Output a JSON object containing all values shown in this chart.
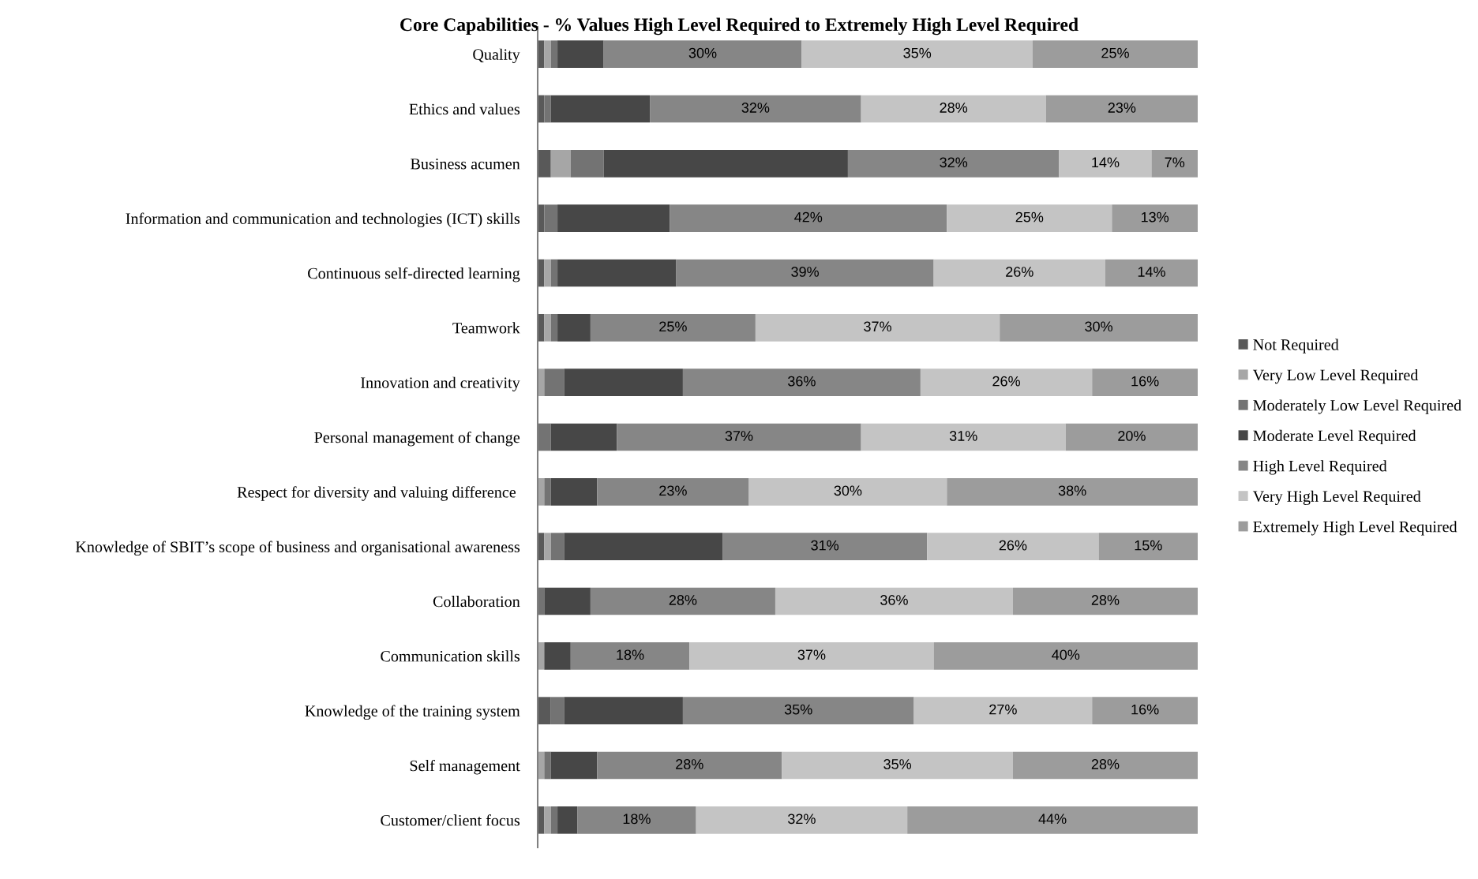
{
  "chart_data": {
    "type": "bar",
    "orientation": "horizontal",
    "stacked": true,
    "title": "Core Capabilities - % Values High Level Required to Extremely High Level Required",
    "legend": "right",
    "grid": false,
    "tick_labels": "y",
    "categories": [
      "Quality",
      "Ethics and values",
      "Business acumen",
      "Information and communication and technologies (ICT) skills",
      "Continuous self-directed learning",
      "Teamwork",
      "Innovation and creativity",
      "Personal management of change",
      "Respect for diversity and valuing difference ",
      "Knowledge of SBIT’s scope of business and organisational awareness",
      "Collaboration",
      "Communication skills",
      "Knowledge of the training system",
      "Self management",
      "Customer/client focus"
    ],
    "series": [
      {
        "name": "Not Required",
        "color": "#595959",
        "values": [
          1,
          1,
          2,
          1,
          1,
          1,
          0,
          0,
          0,
          1,
          0,
          0,
          2,
          0,
          1
        ]
      },
      {
        "name": "Very Low Level Required",
        "color": "#a6a6a6",
        "values": [
          1,
          0,
          3,
          0,
          1,
          1,
          1,
          0,
          1,
          1,
          0,
          1,
          0,
          1,
          1
        ]
      },
      {
        "name": "Moderately Low Level Required",
        "color": "#737373",
        "values": [
          1,
          1,
          5,
          2,
          1,
          1,
          3,
          2,
          1,
          2,
          1,
          0,
          2,
          1,
          1
        ]
      },
      {
        "name": "Moderate Level Required",
        "color": "#474747",
        "values": [
          7,
          15,
          37,
          17,
          18,
          5,
          18,
          10,
          7,
          24,
          7,
          4,
          18,
          7,
          3
        ]
      },
      {
        "name": "High Level Required",
        "color": "#868686",
        "values": [
          30,
          32,
          32,
          42,
          39,
          25,
          36,
          37,
          23,
          31,
          28,
          18,
          35,
          28,
          18
        ],
        "value_labels": [
          "30%",
          "32%",
          "32%",
          "42%",
          "39%",
          "25%",
          "36%",
          "37%",
          "23%",
          "31%",
          "28%",
          "18%",
          "35%",
          "28%",
          "18%"
        ]
      },
      {
        "name": "Very High Level Required",
        "color": "#c4c4c4",
        "values": [
          35,
          28,
          14,
          25,
          26,
          37,
          26,
          31,
          30,
          26,
          36,
          37,
          27,
          35,
          32
        ],
        "value_labels": [
          "35%",
          "28%",
          "14%",
          "25%",
          "26%",
          "37%",
          "26%",
          "31%",
          "30%",
          "26%",
          "36%",
          "37%",
          "27%",
          "35%",
          "32%"
        ]
      },
      {
        "name": "Extremely High Level Required",
        "color": "#9c9c9c",
        "values": [
          25,
          23,
          7,
          13,
          14,
          30,
          16,
          20,
          38,
          15,
          28,
          40,
          16,
          28,
          44
        ],
        "value_labels": [
          "25%",
          "23%",
          "7%",
          "13%",
          "14%",
          "30%",
          "16%",
          "20%",
          "38%",
          "15%",
          "28%",
          "40%",
          "16%",
          "28%",
          "44%"
        ]
      }
    ]
  }
}
